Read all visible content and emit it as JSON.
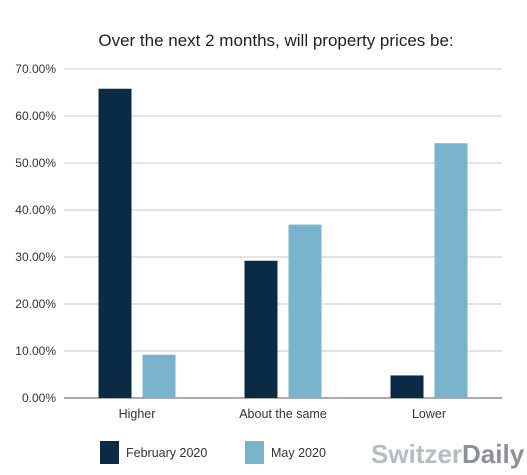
{
  "chart_data": {
    "type": "bar",
    "title": "Over the next 2 months, will property prices be:",
    "categories": [
      "Higher",
      "About the same",
      "Lower"
    ],
    "series": [
      {
        "name": "February 2020",
        "color": "#0b2a45",
        "values": [
          65.8,
          29.2,
          4.8
        ]
      },
      {
        "name": "May 2020",
        "color": "#78b3cb",
        "values": [
          9.2,
          36.9,
          54.2
        ]
      }
    ],
    "ylim": [
      0,
      70
    ],
    "yticks": [
      "0.00%",
      "10.00%",
      "20.00%",
      "30.00%",
      "40.00%",
      "50.00%",
      "60.00%",
      "70.00%"
    ],
    "grid": true,
    "legend": "bottom-left"
  },
  "brand": {
    "part1": "Switzer",
    "part2": "Daily"
  }
}
